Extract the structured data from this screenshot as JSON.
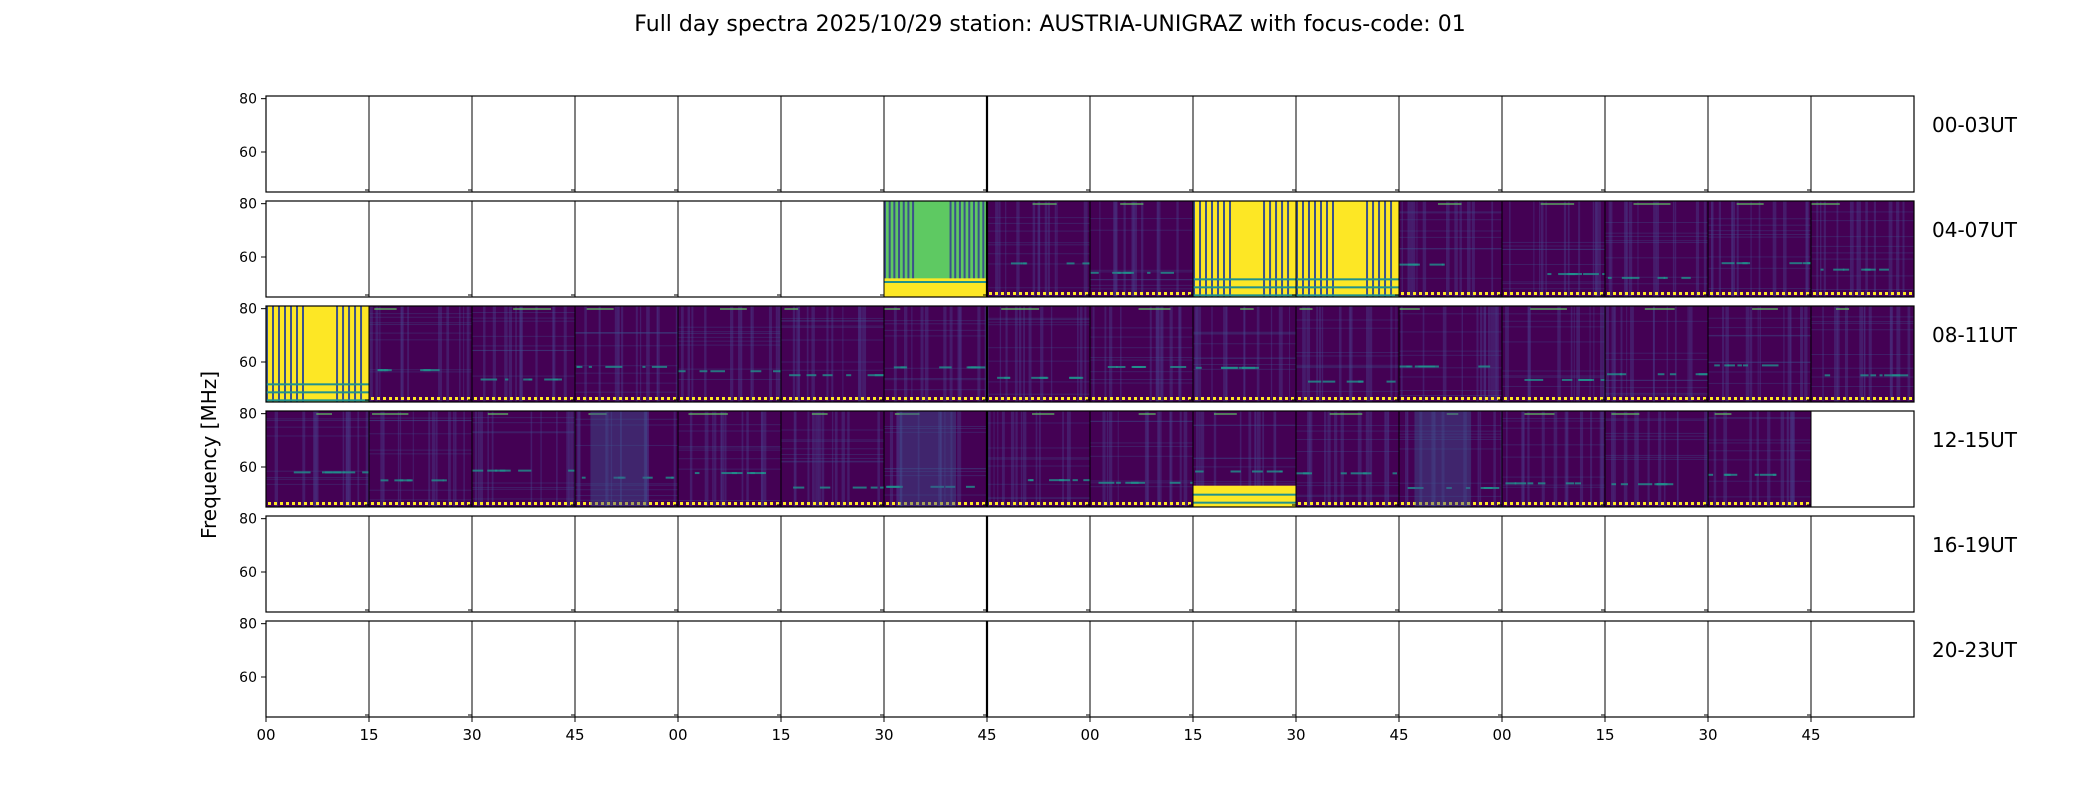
{
  "chart_data": {
    "type": "heatmap",
    "title": "Full day spectra 2025/10/29 station: AUSTRIA-UNIGRAZ with focus-code: 01",
    "ylabel": "Frequency [MHz]",
    "ylim": [
      45,
      81
    ],
    "y_ticks": [
      "80",
      "60"
    ],
    "x_ticks": [
      "00",
      "15",
      "30",
      "45",
      "00",
      "15",
      "30",
      "45",
      "00",
      "15",
      "30",
      "45",
      "00",
      "15",
      "30",
      "45"
    ],
    "grid": false,
    "colormap": "viridis",
    "colors": {
      "low": "#440154",
      "mid_low": "#3b528b",
      "mid": "#21918c",
      "mid_high": "#5ec962",
      "high": "#fde725",
      "dark_alt": "#472d7b"
    },
    "rows": [
      {
        "label": "00-03UT",
        "slots": [
          "empty",
          "empty",
          "empty",
          "empty",
          "empty",
          "empty",
          "empty",
          "empty",
          "empty",
          "empty",
          "empty",
          "empty",
          "empty",
          "empty",
          "empty",
          "empty"
        ]
      },
      {
        "label": "04-07UT",
        "slots": [
          "empty",
          "empty",
          "empty",
          "empty",
          "empty",
          "empty",
          "green-striped",
          "dark",
          "dark",
          "yellow-striped",
          "yellow-striped",
          "dark",
          "dark",
          "dark",
          "dark",
          "dark"
        ]
      },
      {
        "label": "08-11UT",
        "slots": [
          "yellow-striped",
          "dark",
          "dark",
          "dark",
          "dark",
          "dark",
          "dark",
          "dark",
          "dark",
          "dark",
          "dark",
          "dark",
          "dark",
          "dark",
          "dark",
          "dark"
        ]
      },
      {
        "label": "12-15UT",
        "slots": [
          "dark",
          "dark",
          "dark",
          "dark-blue",
          "dark",
          "dark",
          "dark-blue",
          "dark",
          "dark",
          "dark-yellow-band",
          "dark",
          "dark-blue",
          "dark",
          "dark",
          "dark",
          "empty"
        ]
      },
      {
        "label": "16-19UT",
        "slots": [
          "empty",
          "empty",
          "empty",
          "empty",
          "empty",
          "empty",
          "empty",
          "empty",
          "empty",
          "empty",
          "empty",
          "empty",
          "empty",
          "empty",
          "empty",
          "empty"
        ]
      },
      {
        "label": "20-23UT",
        "slots": [
          "empty",
          "empty",
          "empty",
          "empty",
          "empty",
          "empty",
          "empty",
          "empty",
          "empty",
          "empty",
          "empty",
          "empty",
          "empty",
          "empty",
          "empty",
          "empty"
        ]
      }
    ]
  }
}
